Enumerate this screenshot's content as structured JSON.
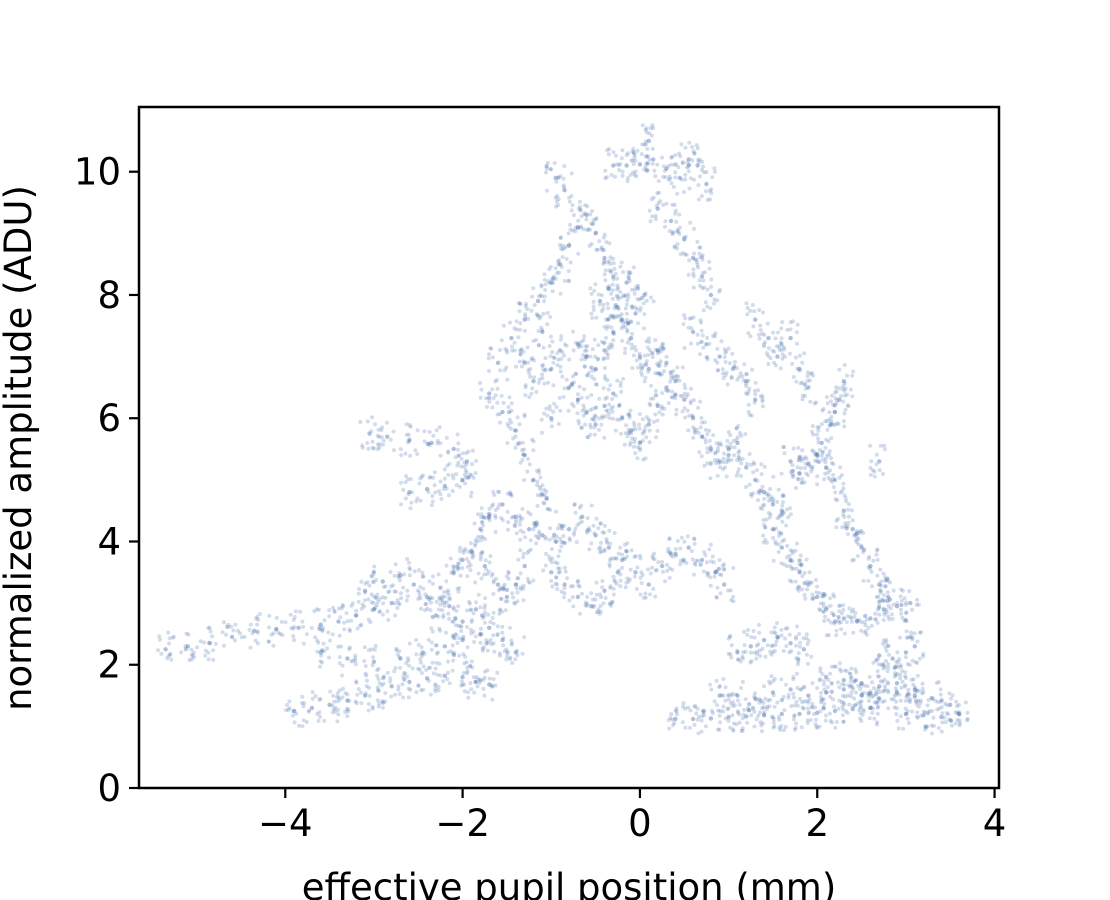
{
  "chart_data": {
    "type": "scatter",
    "title": "",
    "xlabel": "effective pupil position (mm)",
    "ylabel": "normalized amplitude (ADU)",
    "xlim": [
      -5.65,
      4.05
    ],
    "ylim": [
      0,
      11.05
    ],
    "xticks": [
      -4,
      -2,
      0,
      2,
      4
    ],
    "xtick_labels": [
      "−4",
      "−2",
      "0",
      "2",
      "4"
    ],
    "yticks": [
      0,
      2,
      4,
      6,
      8,
      10
    ],
    "ytick_labels": [
      "0",
      "2",
      "4",
      "6",
      "8",
      "10"
    ],
    "grid": false,
    "legend": "none",
    "marker_color": "#4c72b0",
    "marker_alpha": 0.25,
    "series": [
      {
        "values": [
          [
            -5.35,
            2.25
          ],
          [
            -5.1,
            2.3
          ],
          [
            -4.85,
            2.35
          ],
          [
            -4.6,
            2.45
          ],
          [
            -4.35,
            2.55
          ],
          [
            -4.1,
            2.58
          ],
          [
            -3.85,
            2.6
          ],
          [
            -3.6,
            2.65
          ],
          [
            -3.4,
            2.7
          ],
          [
            -3.2,
            2.8
          ],
          [
            -3.0,
            2.9
          ],
          [
            -2.8,
            3.0
          ],
          [
            -3.05,
            5.75
          ],
          [
            -2.85,
            5.7
          ],
          [
            -2.6,
            5.65
          ],
          [
            -2.35,
            5.6
          ],
          [
            -2.1,
            5.5
          ],
          [
            -1.95,
            5.3
          ],
          [
            -2.6,
            4.8
          ],
          [
            -2.4,
            4.85
          ],
          [
            -2.2,
            4.9
          ],
          [
            -2.0,
            5.0
          ],
          [
            -3.9,
            1.25
          ],
          [
            -3.7,
            1.3
          ],
          [
            -3.5,
            1.35
          ],
          [
            -3.3,
            1.42
          ],
          [
            -3.1,
            1.5
          ],
          [
            -2.95,
            1.58
          ],
          [
            -2.8,
            1.65
          ],
          [
            -2.6,
            1.72
          ],
          [
            -2.4,
            1.78
          ],
          [
            -2.2,
            1.82
          ],
          [
            -2.0,
            1.8
          ],
          [
            -1.85,
            1.72
          ],
          [
            -1.7,
            1.68
          ],
          [
            -3.6,
            2.2
          ],
          [
            -3.3,
            2.1
          ],
          [
            -3.0,
            2.05
          ],
          [
            -2.7,
            2.1
          ],
          [
            -2.45,
            2.2
          ],
          [
            -2.2,
            2.3
          ],
          [
            -2.0,
            2.4
          ],
          [
            -1.8,
            2.5
          ],
          [
            -3.1,
            3.2
          ],
          [
            -2.9,
            3.35
          ],
          [
            -2.7,
            3.45
          ],
          [
            -2.55,
            3.3
          ],
          [
            -2.4,
            3.1
          ],
          [
            -2.25,
            3.25
          ],
          [
            -2.1,
            3.5
          ],
          [
            -2.0,
            3.7
          ],
          [
            -1.9,
            3.85
          ],
          [
            -1.75,
            3.6
          ],
          [
            -1.6,
            3.3
          ],
          [
            -1.5,
            3.1
          ],
          [
            -1.4,
            3.3
          ],
          [
            -1.3,
            3.6
          ],
          [
            -2.3,
            2.8
          ],
          [
            -2.15,
            2.95
          ],
          [
            -2.0,
            2.7
          ],
          [
            -1.85,
            2.9
          ],
          [
            -1.7,
            2.6
          ],
          [
            -1.55,
            2.4
          ],
          [
            -1.4,
            2.2
          ],
          [
            -1.8,
            4.2
          ],
          [
            -1.7,
            4.4
          ],
          [
            -1.55,
            4.6
          ],
          [
            -1.4,
            4.4
          ],
          [
            -1.25,
            4.2
          ],
          [
            -1.1,
            4.1
          ],
          [
            -0.95,
            4.0
          ],
          [
            -0.8,
            4.2
          ],
          [
            -0.65,
            4.4
          ],
          [
            -0.5,
            4.1
          ],
          [
            -0.35,
            3.9
          ],
          [
            -0.2,
            3.7
          ],
          [
            -0.05,
            3.5
          ],
          [
            0.1,
            3.3
          ],
          [
            0.25,
            3.6
          ],
          [
            0.4,
            3.8
          ],
          [
            0.55,
            3.9
          ],
          [
            0.7,
            3.7
          ],
          [
            0.85,
            3.5
          ],
          [
            0.95,
            3.3
          ],
          [
            -1.0,
            3.5
          ],
          [
            -0.85,
            3.3
          ],
          [
            -0.7,
            3.1
          ],
          [
            -0.55,
            2.95
          ],
          [
            -0.4,
            3.2
          ],
          [
            -0.25,
            3.5
          ],
          [
            -1.7,
            6.4
          ],
          [
            -1.55,
            6.1
          ],
          [
            -1.4,
            5.8
          ],
          [
            -1.3,
            5.4
          ],
          [
            -1.2,
            5.0
          ],
          [
            -1.05,
            4.7
          ],
          [
            -1.6,
            6.9
          ],
          [
            -1.45,
            7.3
          ],
          [
            -1.3,
            7.6
          ],
          [
            -1.15,
            7.9
          ],
          [
            -1.0,
            8.2
          ],
          [
            -0.9,
            8.5
          ],
          [
            -0.8,
            8.8
          ],
          [
            -0.7,
            9.1
          ],
          [
            -0.6,
            9.3
          ],
          [
            -0.5,
            9.0
          ],
          [
            -0.4,
            8.6
          ],
          [
            -0.3,
            8.3
          ],
          [
            -0.95,
            9.9
          ],
          [
            -0.85,
            9.7
          ],
          [
            -0.3,
            10.1
          ],
          [
            -0.15,
            10.1
          ],
          [
            0.0,
            10.12
          ],
          [
            0.15,
            10.2
          ],
          [
            0.1,
            10.5
          ],
          [
            0.3,
            10.05
          ],
          [
            0.45,
            9.9
          ],
          [
            0.55,
            10.2
          ],
          [
            0.65,
            10.1
          ],
          [
            0.75,
            9.8
          ],
          [
            0.2,
            9.4
          ],
          [
            0.35,
            9.2
          ],
          [
            0.5,
            8.9
          ],
          [
            0.6,
            8.6
          ],
          [
            0.7,
            8.3
          ],
          [
            0.8,
            8.0
          ],
          [
            -0.7,
            7.2
          ],
          [
            -0.6,
            7.0
          ],
          [
            -0.5,
            6.8
          ],
          [
            -0.4,
            7.1
          ],
          [
            -0.3,
            7.4
          ],
          [
            -0.2,
            7.6
          ],
          [
            -0.1,
            7.3
          ],
          [
            0.0,
            7.0
          ],
          [
            0.1,
            6.8
          ],
          [
            0.2,
            7.1
          ],
          [
            0.3,
            6.9
          ],
          [
            0.4,
            6.6
          ],
          [
            -0.45,
            7.9
          ],
          [
            -0.35,
            8.1
          ],
          [
            -0.25,
            7.8
          ],
          [
            -0.15,
            8.2
          ],
          [
            -0.05,
            7.7
          ],
          [
            0.05,
            8.0
          ],
          [
            -0.8,
            6.5
          ],
          [
            -0.7,
            6.3
          ],
          [
            -0.6,
            6.1
          ],
          [
            -0.5,
            5.9
          ],
          [
            -0.4,
            6.2
          ],
          [
            -0.3,
            6.4
          ],
          [
            -0.2,
            6.0
          ],
          [
            -0.1,
            5.8
          ],
          [
            0.0,
            5.6
          ],
          [
            0.1,
            5.9
          ],
          [
            0.2,
            6.2
          ],
          [
            0.3,
            6.5
          ],
          [
            -1.0,
            6.8
          ],
          [
            -0.9,
            7.1
          ],
          [
            -1.1,
            7.4
          ],
          [
            -1.2,
            6.6
          ],
          [
            -1.3,
            6.9
          ],
          [
            -1.0,
            6.0
          ],
          [
            0.5,
            6.3
          ],
          [
            0.6,
            6.0
          ],
          [
            0.7,
            5.7
          ],
          [
            0.8,
            5.5
          ],
          [
            0.9,
            5.3
          ],
          [
            1.0,
            5.4
          ],
          [
            1.1,
            5.6
          ],
          [
            1.2,
            5.2
          ],
          [
            1.3,
            5.0
          ],
          [
            1.4,
            4.8
          ],
          [
            1.5,
            4.6
          ],
          [
            1.6,
            4.5
          ],
          [
            0.6,
            7.4
          ],
          [
            0.75,
            7.2
          ],
          [
            0.9,
            7.0
          ],
          [
            1.05,
            6.8
          ],
          [
            1.2,
            6.6
          ],
          [
            1.3,
            6.3
          ],
          [
            1.3,
            7.6
          ],
          [
            1.45,
            7.3
          ],
          [
            1.55,
            7.0
          ],
          [
            1.7,
            7.3
          ],
          [
            1.8,
            6.8
          ],
          [
            1.9,
            6.5
          ],
          [
            1.7,
            5.3
          ],
          [
            1.8,
            5.1
          ],
          [
            1.9,
            5.25
          ],
          [
            2.0,
            5.4
          ],
          [
            2.1,
            5.2
          ],
          [
            2.2,
            5.0
          ],
          [
            2.3,
            6.6
          ],
          [
            2.25,
            6.3
          ],
          [
            2.2,
            6.1
          ],
          [
            2.15,
            5.9
          ],
          [
            2.05,
            5.6
          ],
          [
            2.7,
            5.3
          ],
          [
            1.5,
            4.2
          ],
          [
            1.6,
            3.9
          ],
          [
            1.7,
            3.7
          ],
          [
            1.8,
            3.5
          ],
          [
            1.9,
            3.3
          ],
          [
            2.0,
            3.1
          ],
          [
            2.1,
            2.9
          ],
          [
            2.2,
            2.7
          ],
          [
            2.3,
            2.75
          ],
          [
            2.45,
            2.7
          ],
          [
            2.6,
            2.75
          ],
          [
            2.75,
            2.9
          ],
          [
            2.9,
            2.95
          ],
          [
            3.05,
            3.0
          ],
          [
            3.1,
            2.3
          ],
          [
            3.0,
            2.2
          ],
          [
            2.85,
            2.1
          ],
          [
            2.7,
            2.15
          ],
          [
            2.3,
            4.5
          ],
          [
            2.4,
            4.2
          ],
          [
            2.5,
            3.9
          ],
          [
            2.6,
            3.6
          ],
          [
            2.7,
            3.3
          ],
          [
            2.8,
            3.1
          ],
          [
            1.1,
            2.2
          ],
          [
            1.25,
            2.3
          ],
          [
            1.4,
            2.4
          ],
          [
            1.55,
            2.45
          ],
          [
            1.7,
            2.35
          ],
          [
            1.85,
            2.25
          ],
          [
            0.4,
            1.12
          ],
          [
            0.6,
            1.12
          ],
          [
            0.8,
            1.13
          ],
          [
            1.0,
            1.15
          ],
          [
            1.2,
            1.16
          ],
          [
            1.4,
            1.18
          ],
          [
            1.6,
            1.2
          ],
          [
            1.8,
            1.2
          ],
          [
            2.0,
            1.22
          ],
          [
            2.2,
            1.25
          ],
          [
            2.4,
            1.28
          ],
          [
            2.6,
            1.3
          ],
          [
            0.9,
            1.5
          ],
          [
            1.1,
            1.5
          ],
          [
            1.3,
            1.45
          ],
          [
            1.5,
            1.55
          ],
          [
            1.7,
            1.6
          ],
          [
            1.9,
            1.5
          ],
          [
            2.1,
            1.55
          ],
          [
            2.3,
            1.6
          ],
          [
            2.5,
            1.5
          ],
          [
            2.7,
            1.45
          ],
          [
            2.9,
            1.55
          ],
          [
            3.1,
            1.5
          ],
          [
            3.3,
            1.45
          ],
          [
            3.5,
            1.35
          ],
          [
            3.6,
            1.2
          ],
          [
            3.4,
            1.15
          ],
          [
            3.2,
            1.18
          ],
          [
            3.0,
            1.2
          ],
          [
            2.1,
            1.8
          ],
          [
            2.3,
            1.75
          ],
          [
            2.5,
            1.7
          ],
          [
            2.7,
            1.65
          ],
          [
            2.9,
            1.7
          ],
          [
            3.1,
            1.6
          ]
        ]
      }
    ]
  }
}
